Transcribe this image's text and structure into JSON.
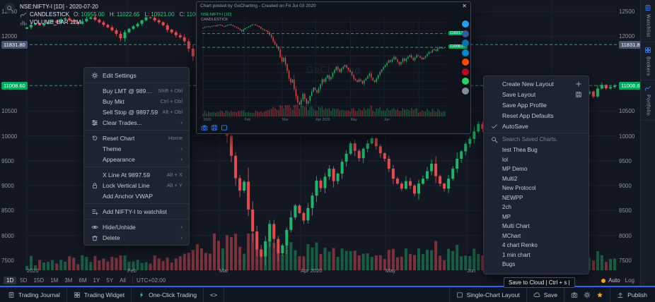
{
  "app": {
    "bg": "#131722",
    "accent": "#2962ff",
    "green": "#00a95f",
    "red": "#e24c51"
  },
  "legend": {
    "symbol_line": "NSE:NIFTY-I [1D] - 2020-07-20",
    "series_label": "CANDLESTICK",
    "ohlc": [
      {
        "k": "O:",
        "v": "10955.00"
      },
      {
        "k": "H:",
        "v": "11022.65"
      },
      {
        "k": "L:",
        "v": "10921.00"
      },
      {
        "k": "C:",
        "v": "11008.60"
      }
    ],
    "volume_line": "VOLUME_BAR 12M"
  },
  "price_axis": {
    "badges": [
      {
        "text": "11831.80",
        "price": 11831.8,
        "bg": "#4a5670"
      },
      {
        "text": "11008.60",
        "price": 11008.6,
        "bg": "#00a95f"
      }
    ]
  },
  "context_menu": {
    "items": [
      {
        "icon": "gear",
        "label": "Edit Settings"
      },
      {
        "type": "sep"
      },
      {
        "label": "Buy LMT @ 9897.59",
        "shortcut": "Shift + Dbl"
      },
      {
        "label": "Buy Mkt",
        "shortcut": "Ctrl + Dbl"
      },
      {
        "label": "Sell Stop @ 9897.59",
        "shortcut": "Alt + Dbl"
      },
      {
        "icon": "sliders",
        "label": "Clear Trades...",
        "shortcut": "›"
      },
      {
        "type": "sep"
      },
      {
        "icon": "reset",
        "label": "Reset Chart",
        "shortcut": "Home"
      },
      {
        "label": "Theme",
        "shortcut": "›"
      },
      {
        "label": "Appearance",
        "shortcut": "›"
      },
      {
        "type": "sep"
      },
      {
        "label": "X Line At 9897.59",
        "shortcut": "Alt + X"
      },
      {
        "icon": "lock",
        "label": "Lock Vertical Line",
        "shortcut": "Alt + Y"
      },
      {
        "label": "Add Anchor VWAP"
      },
      {
        "type": "sep"
      },
      {
        "icon": "listadd",
        "label": "Add NIFTY-I to watchlist"
      },
      {
        "type": "sep"
      },
      {
        "icon": "eye",
        "label": "Hide/Unhide",
        "shortcut": "›"
      },
      {
        "icon": "trash",
        "label": "Delete",
        "shortcut": "›"
      }
    ]
  },
  "layout_menu": {
    "items": [
      {
        "label": "Create New Layout",
        "right": "plus"
      },
      {
        "label": "Save Layout",
        "right": "disk"
      },
      {
        "label": "Save App Profile"
      },
      {
        "label": "Reset App Defaults"
      },
      {
        "icon": "check",
        "label": "AutoSave"
      }
    ],
    "search_placeholder": "Search Saved Charts.",
    "saved_charts": [
      "test Thea Bug",
      "lol",
      "MP Demo",
      "Multi2",
      "New Protocol",
      "NEWPP",
      "2ch",
      "MP",
      "Multi Chart",
      "MChart",
      "4 chart Renko",
      "1 min chart",
      "Bugs"
    ]
  },
  "popup": {
    "title": "Chart posted by GoCharting - Created on Fri Jul 03 2020",
    "close": "✕",
    "watermark": "GoCharting",
    "legend1": "NSE:NIFTY-I [1D]",
    "legend2": "CANDLESTICK",
    "social": [
      {
        "name": "twitter",
        "bg": "#1da1f2"
      },
      {
        "name": "facebook",
        "bg": "#3b5998"
      },
      {
        "name": "linkedin",
        "bg": "#0077b5"
      },
      {
        "name": "telegram",
        "bg": "#0088cc"
      },
      {
        "name": "reddit",
        "bg": "#ff4500"
      },
      {
        "name": "pinterest",
        "bg": "#bd081c"
      },
      {
        "name": "whatsapp",
        "bg": "#25d366"
      },
      {
        "name": "email",
        "bg": "#7f8c9b"
      }
    ]
  },
  "timeframe_bar": {
    "items": [
      {
        "label": "1D",
        "type": "active"
      },
      {
        "label": "5D"
      },
      {
        "label": "15D"
      },
      {
        "label": "1M"
      },
      {
        "label": "3M"
      },
      {
        "label": "6M"
      },
      {
        "label": "1Y"
      },
      {
        "label": "5Y"
      },
      {
        "label": "All"
      }
    ],
    "timezone": "UTC+02:00",
    "auto": "Auto",
    "log": "Log"
  },
  "tooltip": "Save to Cloud | Ctrl + s |",
  "status_bar": {
    "left": [
      {
        "icon": "journal",
        "label": "Trading Journal"
      },
      {
        "icon": "widget",
        "label": "Trading Widget"
      },
      {
        "icon": "bolt",
        "icon_color": "#2bd481",
        "label": "One-Click Trading"
      },
      {
        "label": "<>"
      }
    ],
    "right": [
      {
        "icon": "layout",
        "label": "Single-Chart Layout"
      },
      {
        "icon": "cloud",
        "label": "Save"
      }
    ],
    "right_icons": [
      {
        "name": "camera",
        "icon": "camera"
      },
      {
        "name": "gear",
        "icon": "gear"
      },
      {
        "name": "star",
        "icon": "star",
        "color": "#f7a519"
      }
    ],
    "publish_label": "Publish"
  },
  "side_tabs": [
    {
      "icon": "journal",
      "label": "Watchlist",
      "name": "tab-watchlist"
    },
    {
      "icon": "widget",
      "label": "Brokers",
      "name": "tab-brokers"
    },
    {
      "icon": "chart",
      "label": "Portfolio",
      "name": "tab-portfolio"
    }
  ],
  "chart_data": {
    "type": "candlestick",
    "symbol": "NSE:NIFTY-I",
    "interval": "1D",
    "last": 11008.6,
    "y_min": 7300,
    "y_max": 12700,
    "y_ticks": [
      12500,
      12000,
      10500,
      10000,
      9500,
      9000,
      8500,
      8000,
      7500
    ],
    "x_labels": [
      "2020",
      "Feb",
      "Mar",
      "Apr 2020",
      "May",
      "Jun"
    ],
    "x_label_pos": [
      38,
      180,
      310,
      425,
      545,
      660
    ],
    "levels": [
      {
        "price": 11831.8,
        "color": "#17a673"
      },
      {
        "price": 11008.6,
        "color": "#17a673"
      }
    ],
    "closes": [
      12180,
      12230,
      12260,
      12220,
      12250,
      12280,
      12310,
      12270,
      12340,
      12360,
      12320,
      12280,
      12250,
      12300,
      12350,
      12380,
      12330,
      12280,
      12230,
      12180,
      12120,
      12050,
      11960,
      12080,
      12150,
      12200,
      12250,
      12320,
      12380,
      12370,
      12320,
      12280,
      12220,
      12130,
      12080,
      12020,
      11980,
      11900,
      11750,
      11600,
      11350,
      11200,
      11050,
      10880,
      10420,
      10150,
      10380,
      10000,
      9600,
      9150,
      8900,
      9080,
      8520,
      8080,
      7720,
      7580,
      7880,
      8230,
      7930,
      7640,
      7800,
      8110,
      8360,
      8600,
      8450,
      8300,
      8550,
      8800,
      9100,
      8950,
      9180,
      9340,
      9090,
      9240,
      9480,
      9640,
      9850,
      9700,
      9550,
      9740,
      9850,
      9950,
      9790,
      9650,
      9540,
      9340,
      9140,
      9040,
      8940,
      9090,
      9000,
      8840,
      9040,
      9140,
      9290,
      9440,
      9190,
      9040,
      8940,
      9140,
      9340,
      9540,
      9690,
      9840,
      9940,
      10090,
      10240,
      10140,
      10290,
      10440,
      10290,
      10140,
      9990,
      10140,
      10340,
      10190,
      10340,
      10440,
      10540,
      10390,
      10240,
      10390,
      10540,
      10490,
      10390,
      10290,
      10390,
      10490,
      10610,
      10740,
      10700,
      10840,
      10890,
      10790,
      10950,
      11022,
      10955,
      10980,
      11008.6
    ]
  }
}
